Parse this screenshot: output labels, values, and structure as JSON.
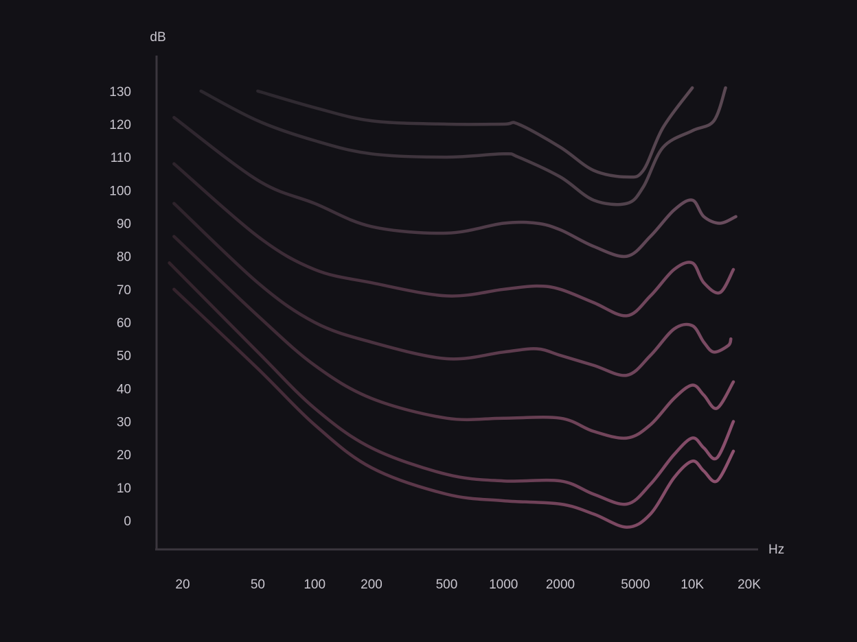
{
  "chart_data": {
    "type": "line",
    "title": "",
    "xlabel": "Hz",
    "ylabel": "dB",
    "x_scale": "log",
    "x_ticks": [
      {
        "value": 20,
        "label": "20"
      },
      {
        "value": 50,
        "label": "50"
      },
      {
        "value": 100,
        "label": "100"
      },
      {
        "value": 200,
        "label": "200"
      },
      {
        "value": 500,
        "label": "500"
      },
      {
        "value": 1000,
        "label": "1000"
      },
      {
        "value": 2000,
        "label": "2000"
      },
      {
        "value": 5000,
        "label": "5000"
      },
      {
        "value": 10000,
        "label": "10K"
      },
      {
        "value": 20000,
        "label": "20K"
      }
    ],
    "y_ticks": [
      {
        "value": 0,
        "label": "0"
      },
      {
        "value": 10,
        "label": "10"
      },
      {
        "value": 20,
        "label": "20"
      },
      {
        "value": 30,
        "label": "30"
      },
      {
        "value": 40,
        "label": "40"
      },
      {
        "value": 50,
        "label": "50"
      },
      {
        "value": 60,
        "label": "60"
      },
      {
        "value": 70,
        "label": "70"
      },
      {
        "value": 80,
        "label": "80"
      },
      {
        "value": 90,
        "label": "90"
      },
      {
        "value": 100,
        "label": "100"
      },
      {
        "value": 110,
        "label": "110"
      },
      {
        "value": 120,
        "label": "120"
      },
      {
        "value": 130,
        "label": "130"
      }
    ],
    "ylim": [
      -8,
      140
    ],
    "grid": false,
    "colors": {
      "background": "#121116",
      "axis": "#3b363e",
      "text": "#c9c6cf",
      "line_dark": "#2e2830",
      "line_light": "#8a4f6d"
    },
    "series": [
      {
        "x": [
          50,
          100,
          200,
          500,
          1000,
          1200,
          2000,
          3000,
          4500,
          5500,
          7000,
          10000
        ],
        "y": [
          130,
          125,
          121,
          120,
          120,
          120,
          113,
          106,
          104,
          106,
          119,
          131
        ],
        "color_start": "#2c272e",
        "color_end": "#5a4853"
      },
      {
        "x": [
          25,
          50,
          100,
          200,
          500,
          1000,
          1200,
          2000,
          3000,
          4500,
          5500,
          7000,
          10000,
          13000,
          15000
        ],
        "y": [
          130,
          121,
          115,
          111,
          110,
          111,
          110,
          104,
          97,
          96,
          101,
          113,
          118,
          121,
          131
        ],
        "color_start": "#2c272e",
        "color_end": "#5a4853"
      },
      {
        "x": [
          18,
          50,
          100,
          200,
          500,
          1000,
          1500,
          2000,
          3000,
          4500,
          6000,
          8000,
          10000,
          11500,
          14000,
          17000
        ],
        "y": [
          122,
          103,
          96,
          89,
          87,
          90,
          90,
          88,
          83,
          80,
          86,
          94,
          97,
          92,
          90,
          92
        ],
        "color_start": "#2d252d",
        "color_end": "#6a4d5e"
      },
      {
        "x": [
          18,
          50,
          100,
          200,
          500,
          1000,
          1500,
          2000,
          3000,
          4500,
          6000,
          8000,
          10000,
          11500,
          14000,
          16500
        ],
        "y": [
          108,
          86,
          76,
          72,
          68,
          70,
          71,
          70,
          66,
          62,
          68,
          76,
          78,
          72,
          69,
          76
        ],
        "color_start": "#2e242c",
        "color_end": "#7d4c65"
      },
      {
        "x": [
          18,
          50,
          100,
          200,
          500,
          1000,
          1500,
          2000,
          3000,
          4500,
          6000,
          8000,
          10000,
          11500,
          13000,
          15500,
          16000
        ],
        "y": [
          96,
          72,
          60,
          54,
          49,
          51,
          52,
          50,
          47,
          44,
          50,
          58,
          59,
          54,
          51,
          53,
          55
        ],
        "color_start": "#2e232b",
        "color_end": "#7d4c65"
      },
      {
        "x": [
          18,
          50,
          100,
          200,
          500,
          1000,
          2000,
          3000,
          4500,
          6000,
          8000,
          10000,
          11500,
          13500,
          16500
        ],
        "y": [
          86,
          62,
          47,
          37,
          31,
          31,
          31,
          27,
          25,
          29,
          37,
          41,
          38,
          34,
          42
        ],
        "color_start": "#30232b",
        "color_end": "#864f69"
      },
      {
        "x": [
          17,
          50,
          100,
          200,
          500,
          1000,
          2000,
          3000,
          4500,
          6000,
          8000,
          10000,
          11500,
          13500,
          16500
        ],
        "y": [
          78,
          51,
          34,
          22,
          14,
          12,
          12,
          8,
          5,
          11,
          20,
          25,
          22,
          19,
          30
        ],
        "color_start": "#32232b",
        "color_end": "#8a4f6d"
      },
      {
        "x": [
          18,
          50,
          100,
          200,
          500,
          1000,
          2000,
          3000,
          4500,
          6000,
          8000,
          10000,
          11500,
          13500,
          16500
        ],
        "y": [
          70,
          46,
          29,
          16,
          8,
          6,
          5,
          2,
          -2,
          2,
          13,
          18,
          15,
          12,
          21
        ],
        "color_start": "#34232c",
        "color_end": "#8f5270"
      }
    ]
  }
}
